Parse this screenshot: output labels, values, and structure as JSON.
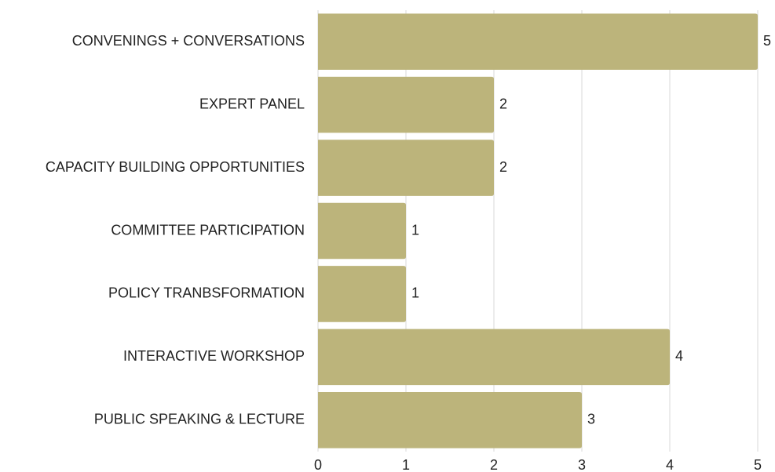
{
  "chart_data": {
    "type": "bar",
    "orientation": "horizontal",
    "categories": [
      "CONVENINGS + CONVERSATIONS",
      "EXPERT PANEL",
      "CAPACITY BUILDING OPPORTUNITIES",
      "COMMITTEE PARTICIPATION",
      "POLICY TRANBSFORMATION",
      "INTERACTIVE WORKSHOP",
      "PUBLIC SPEAKING & LECTURE"
    ],
    "values": [
      5,
      2,
      2,
      1,
      1,
      4,
      3
    ],
    "color": "#bcb47b",
    "xlim": [
      0,
      5
    ],
    "xticks": [
      0,
      1,
      2,
      3,
      4,
      5
    ],
    "grid": true
  }
}
